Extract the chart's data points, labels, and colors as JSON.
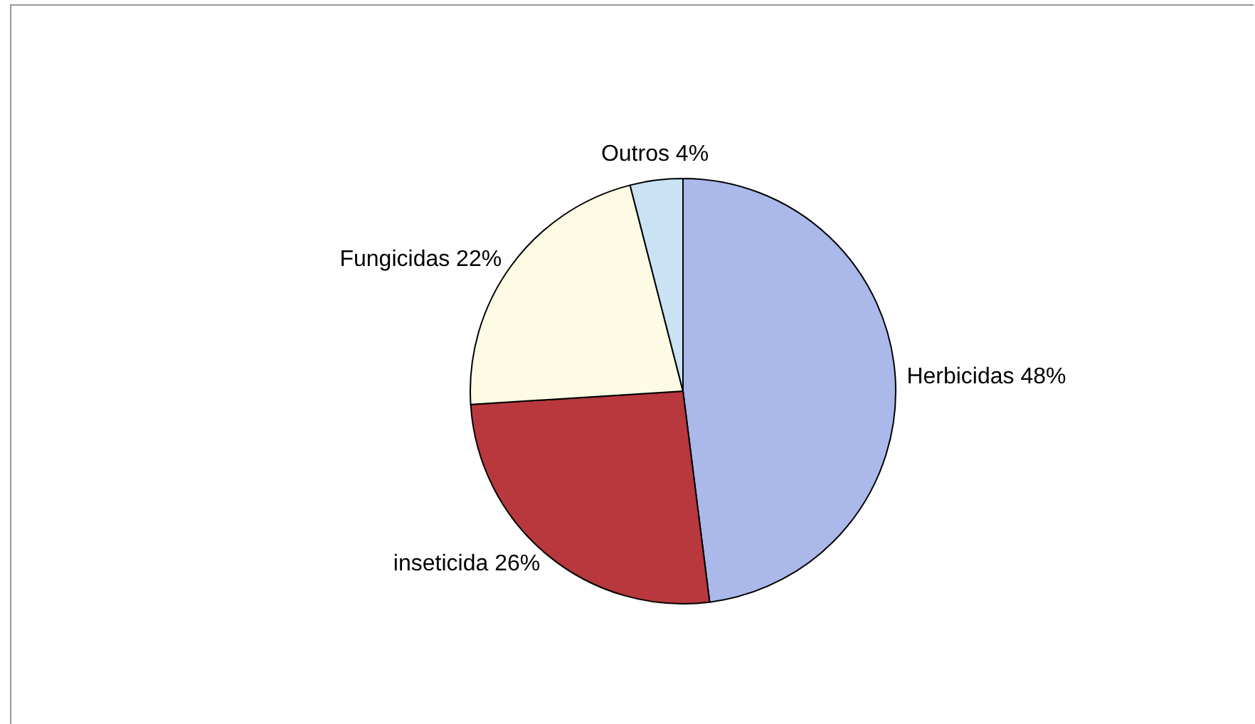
{
  "chart_data": {
    "type": "pie",
    "categories": [
      "Herbicidas",
      "inseticida",
      "Fungicidas",
      "Outros"
    ],
    "values": [
      48,
      26,
      22,
      4
    ],
    "colors": [
      "#aab9ea",
      "#b8383d",
      "#fdfbe4",
      "#c9e3f5"
    ],
    "value_labels": [
      "48%",
      "26%",
      "22%",
      "4%"
    ],
    "legend": false
  }
}
